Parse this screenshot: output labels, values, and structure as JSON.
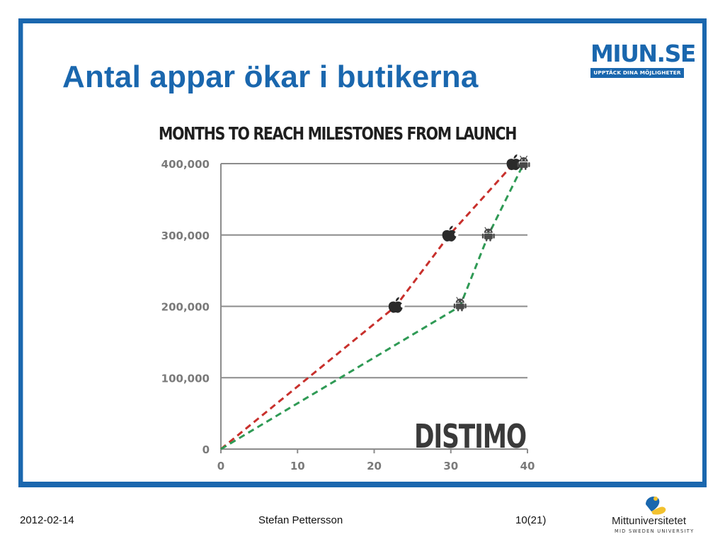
{
  "slide": {
    "title": "Antal appar ökar i butikerna",
    "logo_main": "MIUN.SE",
    "logo_tagline": "UPPTÄCK DINA MÖJLIGHETER"
  },
  "footer": {
    "date": "2012-02-14",
    "author": "Stefan Pettersson",
    "page": "10(21)",
    "university": "Mittuniversitetet",
    "university_en": "MID SWEDEN UNIVERSITY"
  },
  "colors": {
    "slide_blue": "#1a67ae",
    "apple_series": "#c8302c",
    "android_series": "#2f9a55",
    "grid": "#8c8c8c"
  },
  "chart_data": {
    "type": "line",
    "title": "MONTHS TO REACH MILESTONES FROM LAUNCH",
    "watermark": "DISTIMO",
    "xlim": [
      0,
      40
    ],
    "ylim": [
      0,
      400000
    ],
    "x_ticks": [
      "0",
      "10",
      "20",
      "30",
      "40"
    ],
    "y_ticks": [
      "0",
      "100,000",
      "200,000",
      "300,000",
      "400,000"
    ],
    "grid": "horizontal",
    "series": [
      {
        "icon": "apple-icon",
        "color": "#c8302c",
        "style": "dashed",
        "points": [
          [
            0,
            0
          ],
          [
            22.8,
            200000
          ],
          [
            29.8,
            300000
          ],
          [
            38.2,
            400000
          ]
        ],
        "markers": [
          [
            22.8,
            200000
          ],
          [
            29.8,
            300000
          ],
          [
            38.2,
            400000
          ]
        ]
      },
      {
        "icon": "android-icon",
        "color": "#2f9a55",
        "style": "dashed",
        "points": [
          [
            0,
            0
          ],
          [
            31.2,
            200000
          ],
          [
            34.9,
            300000
          ],
          [
            39.5,
            400000
          ]
        ],
        "markers": [
          [
            31.2,
            203000
          ],
          [
            34.9,
            301000
          ],
          [
            39.5,
            401000
          ]
        ]
      }
    ]
  }
}
